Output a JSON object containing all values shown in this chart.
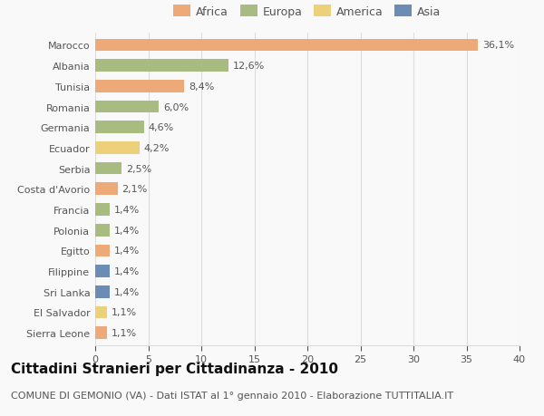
{
  "countries": [
    "Sierra Leone",
    "El Salvador",
    "Sri Lanka",
    "Filippine",
    "Egitto",
    "Polonia",
    "Francia",
    "Costa d'Avorio",
    "Serbia",
    "Ecuador",
    "Germania",
    "Romania",
    "Tunisia",
    "Albania",
    "Marocco"
  ],
  "values": [
    1.1,
    1.1,
    1.4,
    1.4,
    1.4,
    1.4,
    1.4,
    2.1,
    2.5,
    4.2,
    4.6,
    6.0,
    8.4,
    12.6,
    36.1
  ],
  "labels": [
    "1,1%",
    "1,1%",
    "1,4%",
    "1,4%",
    "1,4%",
    "1,4%",
    "1,4%",
    "2,1%",
    "2,5%",
    "4,2%",
    "4,6%",
    "6,0%",
    "8,4%",
    "12,6%",
    "36,1%"
  ],
  "continents": [
    "Africa",
    "America",
    "Asia",
    "Asia",
    "Africa",
    "Europa",
    "Europa",
    "Africa",
    "Europa",
    "America",
    "Europa",
    "Europa",
    "Africa",
    "Europa",
    "Africa"
  ],
  "colors": {
    "Africa": "#EDAA78",
    "Europa": "#A8BC82",
    "America": "#EDD07A",
    "Asia": "#6B8DB5"
  },
  "legend_order": [
    "Africa",
    "Europa",
    "America",
    "Asia"
  ],
  "title": "Cittadini Stranieri per Cittadinanza - 2010",
  "subtitle": "COMUNE DI GEMONIO (VA) - Dati ISTAT al 1° gennaio 2010 - Elaborazione TUTTITALIA.IT",
  "xlim": [
    0,
    40
  ],
  "xticks": [
    0,
    5,
    10,
    15,
    20,
    25,
    30,
    35,
    40
  ],
  "background_color": "#f9f9f9",
  "grid_color": "#dddddd",
  "bar_height": 0.6,
  "title_fontsize": 11,
  "subtitle_fontsize": 8,
  "label_fontsize": 8,
  "tick_fontsize": 8,
  "legend_fontsize": 9,
  "text_color": "#555555",
  "title_color": "#111111"
}
